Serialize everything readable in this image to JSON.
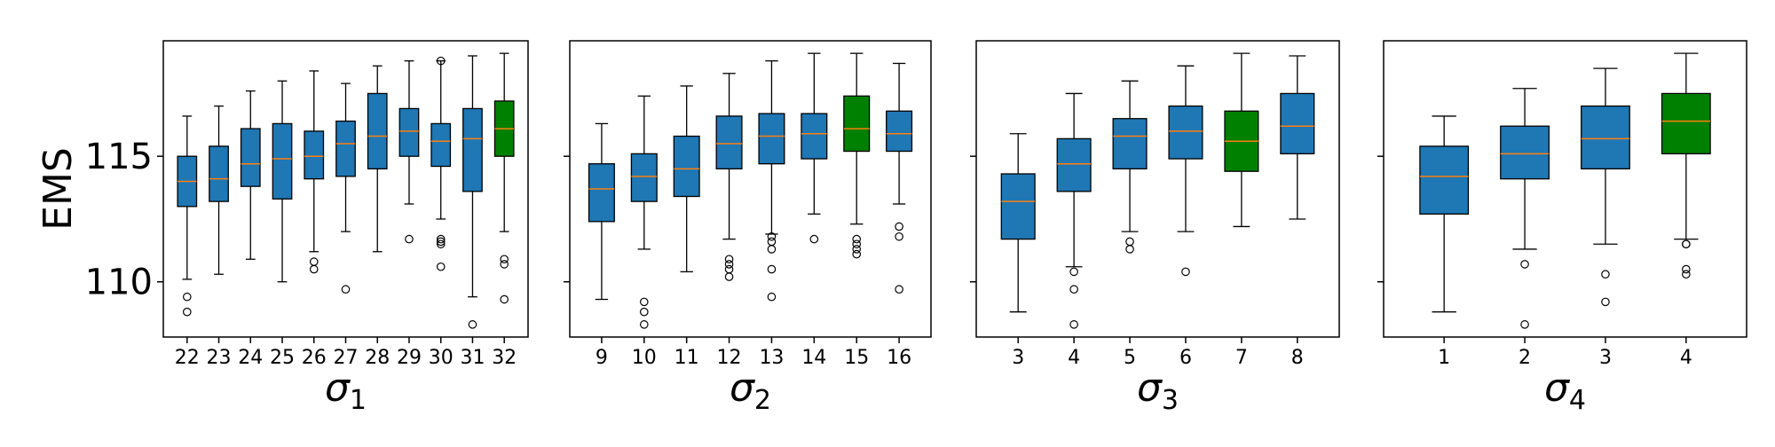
{
  "chart_data": [
    {
      "type": "boxplot",
      "xlabel": "σ",
      "xlabel_sub": "1",
      "ylabel": "EMS",
      "ylim": [
        107.8,
        119.6
      ],
      "yticks": [
        "110",
        "115"
      ],
      "highlight_color": "#008000",
      "box_color": "#1f77b4",
      "median_color": "#ff7f0e",
      "boxes": [
        {
          "label": "22",
          "whislo": 110.1,
          "q1": 113.0,
          "med": 114.0,
          "q3": 115.0,
          "whishi": 116.6,
          "fliers": [
            109.4,
            108.8
          ],
          "highlight": false
        },
        {
          "label": "23",
          "whislo": 110.3,
          "q1": 113.2,
          "med": 114.1,
          "q3": 115.4,
          "whishi": 117.0,
          "fliers": [],
          "highlight": false
        },
        {
          "label": "24",
          "whislo": 110.9,
          "q1": 113.8,
          "med": 114.7,
          "q3": 116.1,
          "whishi": 117.6,
          "fliers": [],
          "highlight": false
        },
        {
          "label": "25",
          "whislo": 110.0,
          "q1": 113.3,
          "med": 114.9,
          "q3": 116.3,
          "whishi": 118.0,
          "fliers": [],
          "highlight": false
        },
        {
          "label": "26",
          "whislo": 111.2,
          "q1": 114.1,
          "med": 115.0,
          "q3": 116.0,
          "whishi": 118.4,
          "fliers": [
            110.8,
            110.5
          ],
          "highlight": false
        },
        {
          "label": "27",
          "whislo": 112.0,
          "q1": 114.2,
          "med": 115.5,
          "q3": 116.4,
          "whishi": 117.9,
          "fliers": [
            109.7
          ],
          "highlight": false
        },
        {
          "label": "28",
          "whislo": 111.2,
          "q1": 114.5,
          "med": 115.8,
          "q3": 117.5,
          "whishi": 118.6,
          "fliers": [],
          "highlight": false
        },
        {
          "label": "29",
          "whislo": 113.1,
          "q1": 115.0,
          "med": 116.0,
          "q3": 116.9,
          "whishi": 118.8,
          "fliers": [
            111.7
          ],
          "highlight": false
        },
        {
          "label": "30",
          "whislo": 112.5,
          "q1": 114.6,
          "med": 115.6,
          "q3": 116.3,
          "whishi": 118.8,
          "fliers": [
            118.8,
            111.7,
            111.6,
            111.5,
            110.6
          ],
          "highlight": false
        },
        {
          "label": "31",
          "whislo": 109.4,
          "q1": 113.6,
          "med": 115.7,
          "q3": 116.9,
          "whishi": 119.0,
          "fliers": [
            108.3
          ],
          "highlight": false
        },
        {
          "label": "32",
          "whislo": 112.0,
          "q1": 115.0,
          "med": 116.1,
          "q3": 117.2,
          "whishi": 119.1,
          "fliers": [
            110.9,
            110.7,
            109.3
          ],
          "highlight": true
        }
      ]
    },
    {
      "type": "boxplot",
      "xlabel": "σ",
      "xlabel_sub": "2",
      "ylim": [
        107.8,
        119.6
      ],
      "boxes": [
        {
          "label": "9",
          "whislo": 109.3,
          "q1": 112.4,
          "med": 113.7,
          "q3": 114.7,
          "whishi": 116.3,
          "fliers": [],
          "highlight": false
        },
        {
          "label": "10",
          "whislo": 111.3,
          "q1": 113.2,
          "med": 114.2,
          "q3": 115.1,
          "whishi": 117.4,
          "fliers": [
            109.2,
            108.8,
            108.3
          ],
          "highlight": false
        },
        {
          "label": "11",
          "whislo": 110.4,
          "q1": 113.4,
          "med": 114.5,
          "q3": 115.8,
          "whishi": 117.8,
          "fliers": [],
          "highlight": false
        },
        {
          "label": "12",
          "whislo": 111.7,
          "q1": 114.5,
          "med": 115.5,
          "q3": 116.6,
          "whishi": 118.3,
          "fliers": [
            110.9,
            110.7,
            110.5,
            110.2
          ],
          "highlight": false
        },
        {
          "label": "13",
          "whislo": 111.9,
          "q1": 114.7,
          "med": 115.8,
          "q3": 116.7,
          "whishi": 118.8,
          "fliers": [
            111.8,
            111.6,
            111.3,
            110.5,
            109.4
          ],
          "highlight": false
        },
        {
          "label": "14",
          "whislo": 112.7,
          "q1": 114.9,
          "med": 115.9,
          "q3": 116.7,
          "whishi": 119.1,
          "fliers": [
            111.7
          ],
          "highlight": false
        },
        {
          "label": "15",
          "whislo": 112.3,
          "q1": 115.2,
          "med": 116.1,
          "q3": 117.4,
          "whishi": 119.1,
          "fliers": [
            111.7,
            111.5,
            111.3,
            111.1
          ],
          "highlight": true
        },
        {
          "label": "16",
          "whislo": 113.1,
          "q1": 115.2,
          "med": 115.9,
          "q3": 116.8,
          "whishi": 118.7,
          "fliers": [
            112.2,
            111.8,
            109.7
          ],
          "highlight": false
        }
      ]
    },
    {
      "type": "boxplot",
      "xlabel": "σ",
      "xlabel_sub": "3",
      "ylim": [
        107.8,
        119.6
      ],
      "boxes": [
        {
          "label": "3",
          "whislo": 108.8,
          "q1": 111.7,
          "med": 113.2,
          "q3": 114.3,
          "whishi": 115.9,
          "fliers": [],
          "highlight": false
        },
        {
          "label": "4",
          "whislo": 110.6,
          "q1": 113.6,
          "med": 114.7,
          "q3": 115.7,
          "whishi": 117.5,
          "fliers": [
            110.4,
            109.7,
            108.3
          ],
          "highlight": false
        },
        {
          "label": "5",
          "whislo": 112.0,
          "q1": 114.5,
          "med": 115.8,
          "q3": 116.5,
          "whishi": 118.0,
          "fliers": [
            111.6,
            111.3
          ],
          "highlight": false
        },
        {
          "label": "6",
          "whislo": 112.0,
          "q1": 114.9,
          "med": 116.0,
          "q3": 117.0,
          "whishi": 118.6,
          "fliers": [
            110.4
          ],
          "highlight": false
        },
        {
          "label": "7",
          "whislo": 112.2,
          "q1": 114.4,
          "med": 115.6,
          "q3": 116.8,
          "whishi": 119.1,
          "fliers": [],
          "highlight": true
        },
        {
          "label": "8",
          "whislo": 112.5,
          "q1": 115.1,
          "med": 116.2,
          "q3": 117.5,
          "whishi": 119.0,
          "fliers": [],
          "highlight": false
        }
      ]
    },
    {
      "type": "boxplot",
      "xlabel": "σ",
      "xlabel_sub": "4",
      "ylim": [
        107.8,
        119.6
      ],
      "boxes": [
        {
          "label": "1",
          "whislo": 108.8,
          "q1": 112.7,
          "med": 114.2,
          "q3": 115.4,
          "whishi": 116.6,
          "fliers": [],
          "highlight": false
        },
        {
          "label": "2",
          "whislo": 111.3,
          "q1": 114.1,
          "med": 115.1,
          "q3": 116.2,
          "whishi": 117.7,
          "fliers": [
            110.7,
            108.3
          ],
          "highlight": false
        },
        {
          "label": "3",
          "whislo": 111.5,
          "q1": 114.5,
          "med": 115.7,
          "q3": 117.0,
          "whishi": 118.5,
          "fliers": [
            110.3,
            109.2
          ],
          "highlight": false
        },
        {
          "label": "4",
          "whislo": 111.7,
          "q1": 115.1,
          "med": 116.4,
          "q3": 117.5,
          "whishi": 119.1,
          "fliers": [
            111.5,
            111.5,
            110.5,
            110.3
          ],
          "highlight": true
        }
      ]
    }
  ]
}
